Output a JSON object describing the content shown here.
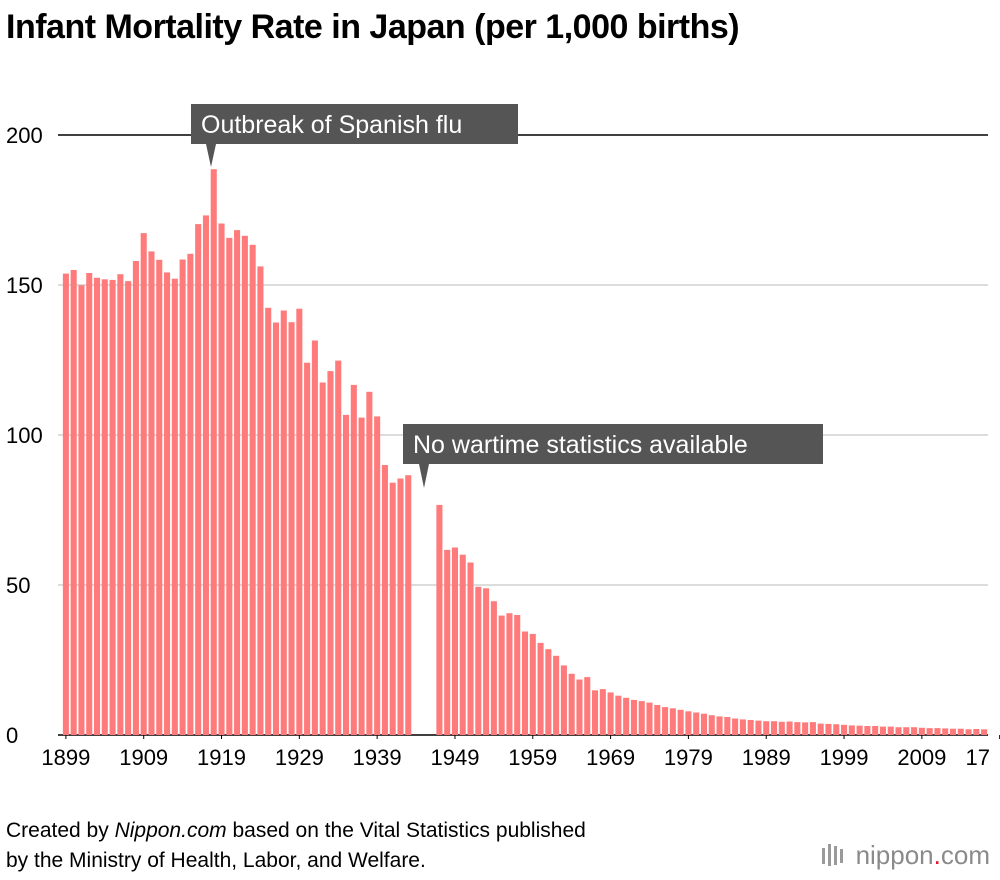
{
  "title": "Infant Mortality Rate in Japan (per 1,000 births)",
  "chart_data": {
    "type": "bar",
    "title": "Infant Mortality Rate in Japan (per 1,000 births)",
    "xlabel": "",
    "ylabel": "",
    "ylim": [
      0,
      200
    ],
    "yticks": [
      0,
      50,
      100,
      150,
      200
    ],
    "grid": true,
    "x_tick_labels": [
      "1899",
      "1909",
      "1919",
      "1929",
      "1939",
      "1949",
      "1959",
      "1969",
      "1979",
      "1989",
      "1999",
      "2009",
      "17"
    ],
    "missing_years": [
      1944,
      1945,
      1946
    ],
    "years": [
      1899,
      1900,
      1901,
      1902,
      1903,
      1904,
      1905,
      1906,
      1907,
      1908,
      1909,
      1910,
      1911,
      1912,
      1913,
      1914,
      1915,
      1916,
      1917,
      1918,
      1919,
      1920,
      1921,
      1922,
      1923,
      1924,
      1925,
      1926,
      1927,
      1928,
      1929,
      1930,
      1931,
      1932,
      1933,
      1934,
      1935,
      1936,
      1937,
      1938,
      1939,
      1940,
      1941,
      1942,
      1943,
      1947,
      1948,
      1949,
      1950,
      1951,
      1952,
      1953,
      1954,
      1955,
      1956,
      1957,
      1958,
      1959,
      1960,
      1961,
      1962,
      1963,
      1964,
      1965,
      1966,
      1967,
      1968,
      1969,
      1970,
      1971,
      1972,
      1973,
      1974,
      1975,
      1976,
      1977,
      1978,
      1979,
      1980,
      1981,
      1982,
      1983,
      1984,
      1985,
      1986,
      1987,
      1988,
      1989,
      1990,
      1991,
      1992,
      1993,
      1994,
      1995,
      1996,
      1997,
      1998,
      1999,
      2000,
      2001,
      2002,
      2003,
      2004,
      2005,
      2006,
      2007,
      2008,
      2009,
      2010,
      2011,
      2012,
      2013,
      2014,
      2015,
      2016,
      2017
    ],
    "values": [
      153.8,
      155.0,
      149.9,
      154.0,
      152.4,
      151.9,
      151.7,
      153.6,
      151.3,
      158.0,
      167.3,
      161.2,
      158.4,
      154.2,
      152.1,
      158.5,
      160.4,
      170.3,
      173.2,
      188.6,
      170.5,
      165.7,
      168.3,
      166.4,
      163.4,
      156.2,
      142.4,
      137.5,
      141.5,
      137.6,
      142.1,
      124.1,
      131.5,
      117.5,
      121.3,
      124.8,
      106.7,
      116.7,
      105.8,
      114.4,
      106.2,
      90.0,
      84.1,
      85.5,
      86.6,
      76.7,
      61.7,
      62.5,
      60.1,
      57.5,
      49.4,
      48.9,
      44.6,
      39.8,
      40.6,
      40.0,
      34.5,
      33.7,
      30.7,
      28.6,
      26.4,
      23.2,
      20.4,
      18.5,
      19.3,
      14.9,
      15.3,
      14.2,
      13.1,
      12.4,
      11.7,
      11.3,
      10.8,
      10.0,
      9.3,
      8.9,
      8.4,
      7.9,
      7.5,
      7.1,
      6.6,
      6.2,
      6.0,
      5.5,
      5.2,
      5.0,
      4.8,
      4.6,
      4.6,
      4.4,
      4.5,
      4.3,
      4.2,
      4.3,
      3.8,
      3.7,
      3.6,
      3.4,
      3.2,
      3.1,
      3.0,
      3.0,
      2.8,
      2.8,
      2.6,
      2.6,
      2.6,
      2.4,
      2.3,
      2.3,
      2.2,
      2.1,
      2.1,
      1.9,
      2.0,
      1.9
    ],
    "bar_color": "#ff7b7b",
    "annotations": [
      {
        "text": "Outbreak of Spanish flu",
        "year": 1918
      },
      {
        "text": "No wartime statistics available",
        "year": 1945
      }
    ]
  },
  "footer": {
    "prefix": "Created by ",
    "brand_italic": "Nippon.com",
    "suffix": " based on the Vital Statistics published",
    "line2": "by the Ministry of Health, Labor, and Welfare."
  },
  "logo": {
    "text": "nippon",
    "dot": ".",
    "tld": "com"
  },
  "colors": {
    "annotation_bg": "#555555",
    "grid": "#c8c8c8",
    "top_line": "#000000",
    "logo_accent": "#e8112d"
  }
}
